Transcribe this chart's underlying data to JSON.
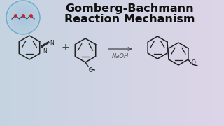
{
  "title_line1": "Gomberg-Bachmann",
  "title_line2": "Reaction Mechanism",
  "title_fontsize": 11.5,
  "title_color": "#111111",
  "bg_left": "#c5d3e0",
  "bg_right": "#ddd5e8",
  "arrow_label": "NaOH",
  "arrow_color": "#555555",
  "structure_color": "#222222",
  "plus_color": "#444444",
  "logo_color": "#90bcd8",
  "logo_edge": "#6aaac8"
}
